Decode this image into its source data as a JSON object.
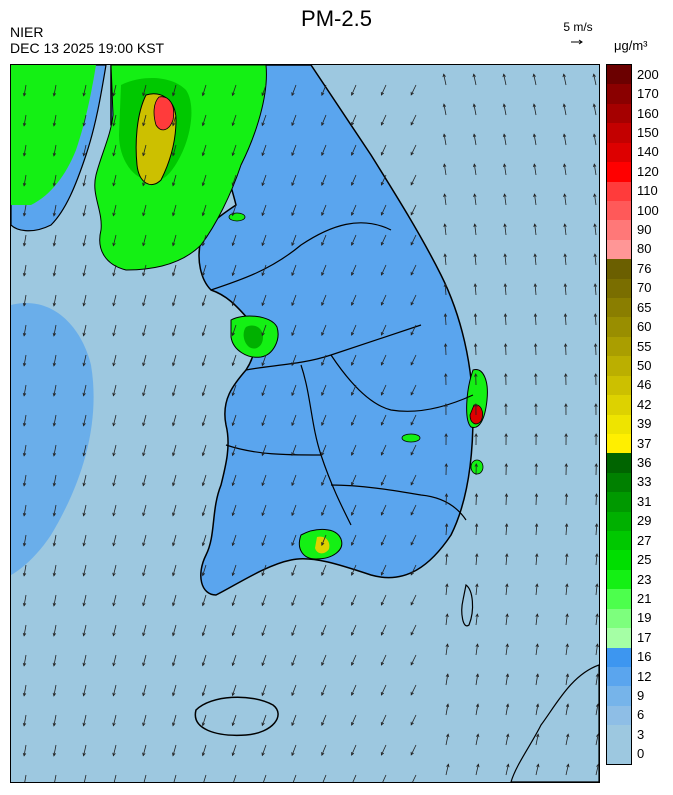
{
  "title": "PM-2.5",
  "agency": "NIER",
  "timestamp": "DEC 13 2025 19:00 KST",
  "wind_reference": "5 m/s",
  "unit": "μg/m³",
  "legend": [
    {
      "label": "200",
      "color": "#6b0000"
    },
    {
      "label": "170",
      "color": "#8a0000"
    },
    {
      "label": "160",
      "color": "#a50000"
    },
    {
      "label": "150",
      "color": "#c30000"
    },
    {
      "label": "140",
      "color": "#dd0000"
    },
    {
      "label": "120",
      "color": "#ff0000"
    },
    {
      "label": "110",
      "color": "#ff3b3b"
    },
    {
      "label": "100",
      "color": "#ff5959"
    },
    {
      "label": "90",
      "color": "#ff7878"
    },
    {
      "label": "80",
      "color": "#ff9696"
    },
    {
      "label": "76",
      "color": "#6b5f00"
    },
    {
      "label": "70",
      "color": "#7a6e00"
    },
    {
      "label": "65",
      "color": "#8a7e00"
    },
    {
      "label": "60",
      "color": "#998e00"
    },
    {
      "label": "55",
      "color": "#aa9e00"
    },
    {
      "label": "50",
      "color": "#bbaf00"
    },
    {
      "label": "46",
      "color": "#ccc000"
    },
    {
      "label": "42",
      "color": "#ddd200"
    },
    {
      "label": "39",
      "color": "#eee400"
    },
    {
      "label": "37",
      "color": "#ffef00"
    },
    {
      "label": "36",
      "color": "#006400"
    },
    {
      "label": "33",
      "color": "#008000"
    },
    {
      "label": "31",
      "color": "#009900"
    },
    {
      "label": "29",
      "color": "#00b000"
    },
    {
      "label": "27",
      "color": "#00c800"
    },
    {
      "label": "25",
      "color": "#00de00"
    },
    {
      "label": "23",
      "color": "#14f014"
    },
    {
      "label": "21",
      "color": "#4dff4d"
    },
    {
      "label": "19",
      "color": "#7dff7d"
    },
    {
      "label": "17",
      "color": "#a5ffa5"
    },
    {
      "label": "16",
      "color": "#3d96f0"
    },
    {
      "label": "12",
      "color": "#5aa5ee"
    },
    {
      "label": "9",
      "color": "#76b4ea"
    },
    {
      "label": "6",
      "color": "#8ebee6"
    },
    {
      "label": "3",
      "color": "#9dc8e0"
    },
    {
      "label": "0",
      "color": "#9dc8e0"
    }
  ],
  "colors": {
    "sea": "#9dc8e0",
    "land_low": "#5b9ef0",
    "outline": "#000000",
    "moderate": "#14f014",
    "moderate_dark": "#00b000"
  }
}
